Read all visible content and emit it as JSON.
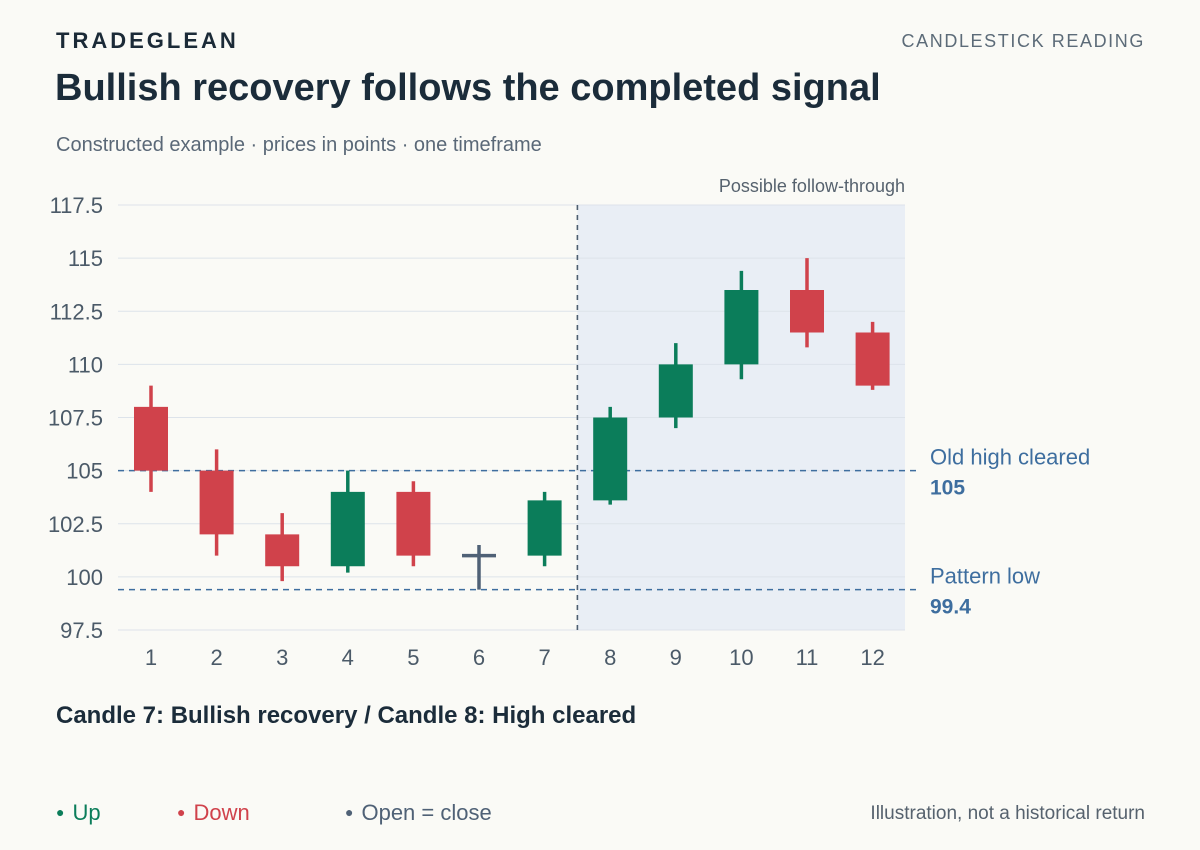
{
  "header": {
    "brand": "TRADEGLEAN",
    "section": "CANDLESTICK READING",
    "title": "Bullish recovery follows the completed signal",
    "subtitle": "Constructed example · prices in points · one timeframe"
  },
  "colors": {
    "up": "#0b7d5a",
    "down": "#d0424b",
    "doji": "#4f6176",
    "reference": "#3e6e9f",
    "shade": "#e9eef5",
    "grid": "#dde3ea",
    "axis_text": "#4b5a68"
  },
  "chart_data": {
    "type": "candlestick",
    "ylim": [
      97.5,
      117.5
    ],
    "yticks": [
      97.5,
      100,
      102.5,
      105,
      107.5,
      110,
      112.5,
      115,
      117.5
    ],
    "ytick_labels": [
      "97.5",
      "100",
      "102.5",
      "105",
      "107.5",
      "110",
      "112.5",
      "115",
      "117.5"
    ],
    "categories": [
      "1",
      "2",
      "3",
      "4",
      "5",
      "6",
      "7",
      "8",
      "9",
      "10",
      "11",
      "12"
    ],
    "candles": [
      {
        "x": "1",
        "open": 108.0,
        "high": 109.0,
        "low": 104.0,
        "close": 105.0,
        "direction": "down"
      },
      {
        "x": "2",
        "open": 105.0,
        "high": 106.0,
        "low": 101.0,
        "close": 102.0,
        "direction": "down"
      },
      {
        "x": "3",
        "open": 102.0,
        "high": 103.0,
        "low": 99.8,
        "close": 100.5,
        "direction": "down"
      },
      {
        "x": "4",
        "open": 100.5,
        "high": 105.0,
        "low": 100.2,
        "close": 104.0,
        "direction": "up"
      },
      {
        "x": "5",
        "open": 104.0,
        "high": 104.5,
        "low": 100.5,
        "close": 101.0,
        "direction": "down"
      },
      {
        "x": "6",
        "open": 101.0,
        "high": 101.5,
        "low": 99.4,
        "close": 101.0,
        "direction": "flat"
      },
      {
        "x": "7",
        "open": 101.0,
        "high": 104.0,
        "low": 100.5,
        "close": 103.6,
        "direction": "up"
      },
      {
        "x": "8",
        "open": 103.6,
        "high": 108.0,
        "low": 103.4,
        "close": 107.5,
        "direction": "up"
      },
      {
        "x": "9",
        "open": 107.5,
        "high": 111.0,
        "low": 107.0,
        "close": 110.0,
        "direction": "up"
      },
      {
        "x": "10",
        "open": 110.0,
        "high": 114.4,
        "low": 109.3,
        "close": 113.5,
        "direction": "up"
      },
      {
        "x": "11",
        "open": 113.5,
        "high": 115.0,
        "low": 110.8,
        "close": 111.5,
        "direction": "down"
      },
      {
        "x": "12",
        "open": 111.5,
        "high": 112.0,
        "low": 108.8,
        "close": 109.0,
        "direction": "down"
      }
    ],
    "shaded_region": {
      "from_after": "7",
      "to": "12",
      "label": "Possible follow-through"
    },
    "reference_lines": [
      {
        "value": 105,
        "label": "Old high cleared",
        "value_label": "105"
      },
      {
        "value": 99.4,
        "label": "Pattern low",
        "value_label": "99.4"
      }
    ],
    "grid": true
  },
  "caption": "Candle 7: Bullish recovery / Candle 8: High cleared",
  "legend": {
    "up": "Up",
    "down": "Down",
    "flat": "Open = close",
    "marker": "●"
  },
  "footnote": "Illustration, not a historical return"
}
